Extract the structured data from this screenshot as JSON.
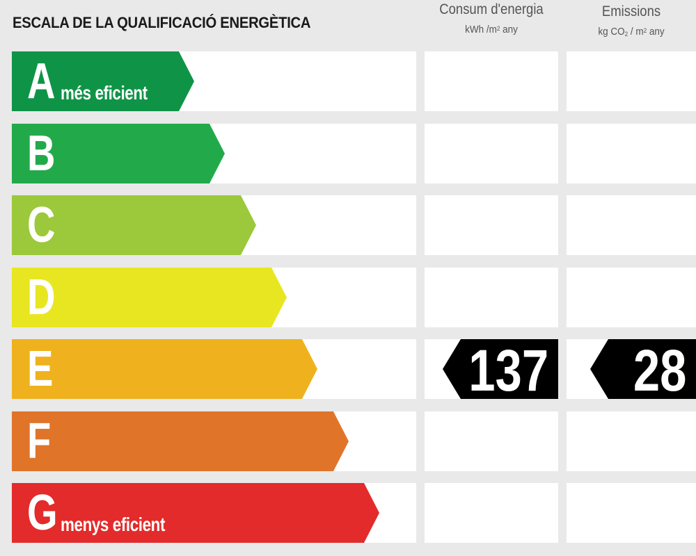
{
  "title": "ESCALA DE LA QUALIFICACIÓ ENERGÈTICA",
  "columns": {
    "consum": {
      "heading": "Consum d'energia",
      "unit_prefix": "kWh /m",
      "unit_exp": "2",
      "unit_suffix": " any"
    },
    "emissions": {
      "heading": "Emissions",
      "unit_prefix": "kg CO",
      "unit_sub": "2",
      "unit_mid": " / m",
      "unit_exp": "2",
      "unit_suffix": "  any"
    }
  },
  "ratings": [
    {
      "letter": "A",
      "description": "més eficient",
      "color": "#0f9447"
    },
    {
      "letter": "B",
      "description": "",
      "color": "#22aa4a"
    },
    {
      "letter": "C",
      "description": "",
      "color": "#9cc83b"
    },
    {
      "letter": "D",
      "description": "",
      "color": "#e8e621"
    },
    {
      "letter": "E",
      "description": "",
      "color": "#efb21e"
    },
    {
      "letter": "F",
      "description": "",
      "color": "#e0752a"
    },
    {
      "letter": "G",
      "description": "menys eficient",
      "color": "#e32b2b"
    }
  ],
  "result": {
    "rating_letter": "E",
    "consum_value": "137",
    "emissions_value": "28",
    "badge_color": "#000000"
  }
}
